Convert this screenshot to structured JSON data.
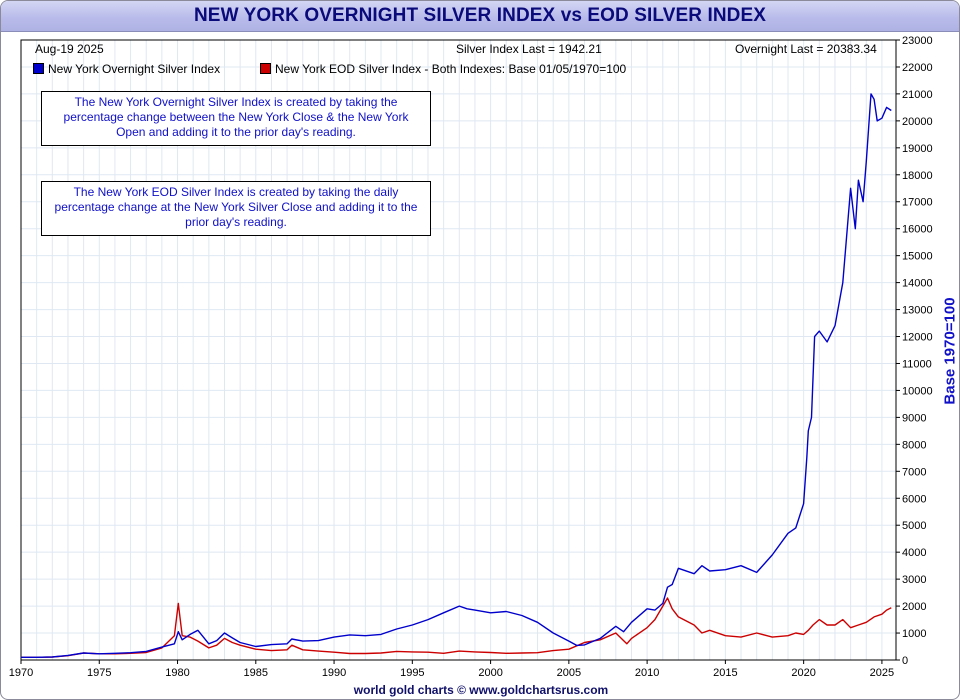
{
  "header": {
    "title": "NEW YORK OVERNIGHT SILVER INDEX vs EOD SILVER INDEX",
    "date": "Aug-19  2025",
    "silver_last": "Silver Index Last = 1942.21",
    "overnight_last": "Overnight Last = 20383.34"
  },
  "legend": {
    "overnight": "New York Overnight Silver Index",
    "eod": "New York EOD Silver Index - Both Indexes: Base 01/05/1970=100"
  },
  "notes": {
    "overnight": "The New York Overnight Silver Index is created by taking the percentage change between the New York Close & the New York Open and adding it to the prior day's reading.",
    "eod": "The New York EOD Silver Index is created by taking the daily percentage change at the New York Silver Close and adding it to the prior day's reading."
  },
  "footer": "world gold charts © www.goldchartsrus.com",
  "colors": {
    "overnight": "#0000cc",
    "eod": "#cc0000",
    "grid": "#dfe8f2",
    "title_bg": "#b9bcea"
  },
  "chart_data": {
    "type": "line",
    "title": "NEW YORK OVERNIGHT SILVER INDEX vs EOD SILVER INDEX",
    "ylabel": "Base 1970=100",
    "xlabel": "",
    "xlim": [
      1970,
      2025.9
    ],
    "ylim": [
      0,
      23000
    ],
    "grid": true,
    "legend_position": "top-left",
    "x_ticks": [
      1970,
      1975,
      1980,
      1985,
      1990,
      1995,
      2000,
      2005,
      2010,
      2015,
      2020,
      2025
    ],
    "y_ticks": [
      0,
      1000,
      2000,
      3000,
      4000,
      5000,
      6000,
      7000,
      8000,
      9000,
      10000,
      11000,
      12000,
      13000,
      14000,
      15000,
      16000,
      17000,
      18000,
      19000,
      20000,
      21000,
      22000,
      23000
    ],
    "series": [
      {
        "name": "New York Overnight Silver Index",
        "color": "#0000cc",
        "x": [
          1970,
          1971,
          1972,
          1973,
          1974,
          1975,
          1976,
          1977,
          1978,
          1979,
          1979.8,
          1980.05,
          1980.3,
          1980.8,
          1981.3,
          1982,
          1982.5,
          1983,
          1983.5,
          1984,
          1985,
          1986,
          1987,
          1987.3,
          1988,
          1989,
          1990,
          1991,
          1992,
          1993,
          1994,
          1995,
          1996,
          1997,
          1998,
          1998.5,
          1999,
          2000,
          2001,
          2002,
          2003,
          2004,
          2005,
          2005.5,
          2006,
          2007,
          2008,
          2008.5,
          2009,
          2010,
          2010.5,
          2011,
          2011.3,
          2011.6,
          2012,
          2013,
          2013.5,
          2014,
          2015,
          2016,
          2017,
          2018,
          2019,
          2019.5,
          2020,
          2020.2,
          2020.3,
          2020.5,
          2020.7,
          2021,
          2021.5,
          2022,
          2022.5,
          2023,
          2023.3,
          2023.5,
          2023.8,
          2024,
          2024.3,
          2024.5,
          2024.7,
          2025,
          2025.3,
          2025.6
        ],
        "y": [
          100,
          100,
          110,
          170,
          260,
          230,
          250,
          270,
          320,
          480,
          600,
          1050,
          750,
          950,
          1100,
          600,
          720,
          1000,
          820,
          650,
          500,
          570,
          600,
          780,
          700,
          720,
          850,
          930,
          900,
          950,
          1150,
          1300,
          1500,
          1750,
          2000,
          1900,
          1850,
          1750,
          1800,
          1650,
          1400,
          1000,
          700,
          540,
          560,
          800,
          1250,
          1050,
          1400,
          1900,
          1850,
          2100,
          2700,
          2800,
          3400,
          3200,
          3500,
          3300,
          3350,
          3500,
          3250,
          3900,
          4700,
          4900,
          5800,
          7500,
          8500,
          9000,
          12000,
          12200,
          11800,
          12400,
          14000,
          17500,
          16000,
          17800,
          17000,
          18500,
          21000,
          20800,
          20000,
          20100,
          20500,
          20383
        ]
      },
      {
        "name": "New York EOD Silver Index - Both Indexes: Base 01/05/1970=100",
        "color": "#cc0000",
        "x": [
          1970,
          1971,
          1972,
          1973,
          1974,
          1975,
          1976,
          1977,
          1978,
          1979,
          1979.8,
          1980.05,
          1980.3,
          1980.8,
          1981.3,
          1982,
          1982.5,
          1983,
          1983.5,
          1984,
          1985,
          1986,
          1987,
          1987.3,
          1988,
          1989,
          1990,
          1991,
          1992,
          1993,
          1994,
          1995,
          1996,
          1997,
          1998,
          1999,
          2000,
          2001,
          2002,
          2003,
          2004,
          2005,
          2006,
          2007,
          2008,
          2008.7,
          2009,
          2010,
          2010.5,
          2011,
          2011.3,
          2011.6,
          2012,
          2013,
          2013.5,
          2014,
          2015,
          2016,
          2017,
          2018,
          2019,
          2019.5,
          2020,
          2020.3,
          2020.6,
          2021,
          2021.5,
          2022,
          2022.5,
          2023,
          2023.5,
          2024,
          2024.5,
          2025,
          2025.3,
          2025.6
        ],
        "y": [
          100,
          100,
          110,
          160,
          260,
          230,
          230,
          250,
          280,
          450,
          900,
          2100,
          900,
          850,
          700,
          450,
          550,
          800,
          650,
          550,
          400,
          350,
          380,
          550,
          380,
          330,
          290,
          240,
          240,
          260,
          320,
          300,
          290,
          250,
          330,
          300,
          280,
          250,
          260,
          270,
          350,
          400,
          650,
          750,
          1000,
          600,
          800,
          1200,
          1500,
          2000,
          2300,
          1900,
          1600,
          1300,
          1000,
          1100,
          900,
          850,
          1000,
          850,
          900,
          1000,
          950,
          1100,
          1300,
          1500,
          1300,
          1300,
          1500,
          1200,
          1300,
          1400,
          1600,
          1700,
          1850,
          1942
        ]
      }
    ]
  }
}
